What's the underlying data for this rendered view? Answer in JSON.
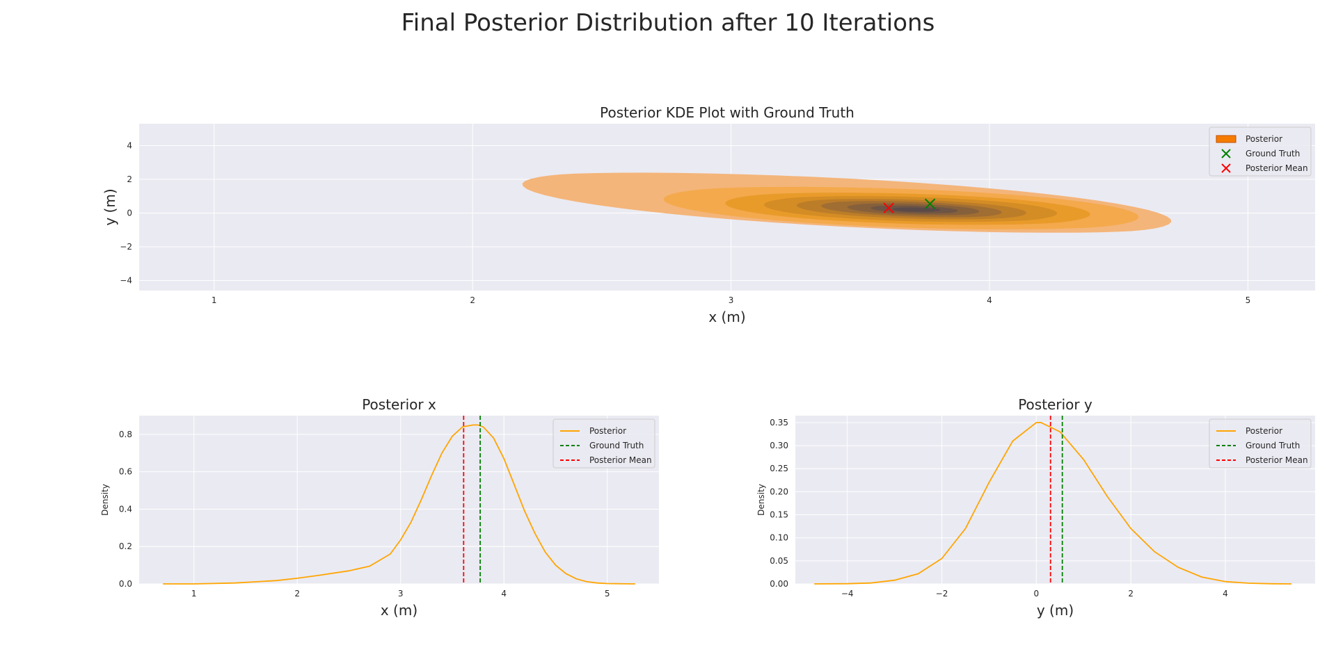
{
  "suptitle": "Final Posterior Distribution after 10 Iterations",
  "colors": {
    "axes_bg": "#eaeaf2",
    "grid": "#ffffff",
    "posterior": "#ffa500",
    "ground_truth": "#008000",
    "posterior_mean": "#ff0000",
    "kde_levels": [
      "#f4b57a",
      "#f4a94c",
      "#e99b2a",
      "#d48c25",
      "#bc7d29",
      "#a06d32",
      "#86603b",
      "#6d5444",
      "#5a4a4a"
    ]
  },
  "chart_data": [
    {
      "type": "kde2d",
      "title": "Posterior KDE Plot with Ground Truth",
      "xlabel": "x (m)",
      "ylabel": "y (m)",
      "xlim": [
        0.71,
        5.26
      ],
      "ylim": [
        -4.6,
        5.3
      ],
      "xticks": [
        1,
        2,
        3,
        4,
        5
      ],
      "yticks": [
        4,
        2,
        0,
        -2,
        -4
      ],
      "ytick_labels": [
        "4",
        "2",
        "0",
        "−2",
        "−4"
      ],
      "grid": true,
      "kde": {
        "center": [
          3.72,
          0.2
        ],
        "major_axis_dir": [
          1,
          -0.95
        ],
        "levels": [
          {
            "t_range": [
              -1.9,
              1.15
            ],
            "halfwidth": 0.3
          },
          {
            "t_range": [
              -1.12,
              0.95
            ],
            "halfwidth": 0.26
          },
          {
            "t_range": [
              -0.82,
              0.72
            ],
            "halfwidth": 0.21
          },
          {
            "t_range": [
              -0.65,
              0.58
            ],
            "halfwidth": 0.17
          },
          {
            "t_range": [
              -0.52,
              0.46
            ],
            "halfwidth": 0.13
          },
          {
            "t_range": [
              -0.42,
              0.36
            ],
            "halfwidth": 0.1
          },
          {
            "t_range": [
              -0.3,
              0.26
            ],
            "halfwidth": 0.075
          },
          {
            "t_range": [
              -0.2,
              0.17
            ],
            "halfwidth": 0.05
          },
          {
            "t_range": [
              -0.1,
              0.09
            ],
            "halfwidth": 0.03
          }
        ]
      },
      "points": [
        {
          "name": "Ground Truth",
          "x": 3.77,
          "y": 0.55,
          "color": "#008000",
          "marker": "x"
        },
        {
          "name": "Posterior Mean",
          "x": 3.61,
          "y": 0.3,
          "color": "#ff0000",
          "marker": "x"
        }
      ],
      "legend": {
        "placement": "upper right",
        "entries": [
          {
            "label": "Posterior",
            "kind": "patch"
          },
          {
            "label": "Ground Truth",
            "kind": "marker"
          },
          {
            "label": "Posterior Mean",
            "kind": "marker"
          }
        ]
      }
    },
    {
      "type": "line",
      "title": "Posterior x",
      "xlabel": "x (m)",
      "ylabel": "Density",
      "xlim": [
        0.47,
        5.5
      ],
      "ylim": [
        0,
        0.9
      ],
      "xticks": [
        1,
        2,
        3,
        4,
        5
      ],
      "yticks": [
        0.0,
        0.2,
        0.4,
        0.6,
        0.8
      ],
      "ytick_labels": [
        "0.0",
        "0.2",
        "0.4",
        "0.6",
        "0.8"
      ],
      "grid": true,
      "series": [
        {
          "name": "Posterior",
          "x": [
            0.7,
            1.0,
            1.4,
            1.8,
            2.0,
            2.2,
            2.5,
            2.7,
            2.9,
            3.0,
            3.1,
            3.2,
            3.3,
            3.4,
            3.5,
            3.6,
            3.7,
            3.75,
            3.8,
            3.9,
            4.0,
            4.1,
            4.2,
            4.3,
            4.4,
            4.5,
            4.6,
            4.7,
            4.8,
            4.9,
            5.0,
            5.1,
            5.27
          ],
          "y": [
            0.0,
            0.0,
            0.005,
            0.018,
            0.03,
            0.045,
            0.07,
            0.095,
            0.16,
            0.235,
            0.33,
            0.45,
            0.58,
            0.7,
            0.79,
            0.84,
            0.85,
            0.85,
            0.84,
            0.78,
            0.67,
            0.53,
            0.39,
            0.27,
            0.17,
            0.1,
            0.055,
            0.027,
            0.012,
            0.005,
            0.002,
            0.001,
            0.0
          ]
        }
      ],
      "vlines": [
        {
          "name": "Ground Truth",
          "x": 3.77,
          "color": "#008000"
        },
        {
          "name": "Posterior Mean",
          "x": 3.61,
          "color": "#ff0000"
        }
      ],
      "legend": {
        "placement": "upper right",
        "entries": [
          {
            "label": "Posterior",
            "kind": "solid",
            "color": "#ffa500"
          },
          {
            "label": "Ground Truth",
            "kind": "dashed",
            "color": "#008000"
          },
          {
            "label": "Posterior Mean",
            "kind": "dashed",
            "color": "#ff0000"
          }
        ]
      }
    },
    {
      "type": "line",
      "title": "Posterior y",
      "xlabel": "y (m)",
      "ylabel": "Density",
      "xlim": [
        -5.1,
        5.9
      ],
      "ylim": [
        0,
        0.365
      ],
      "xticks": [
        -4,
        -2,
        0,
        2,
        4
      ],
      "xtick_labels": [
        "−4",
        "−2",
        "0",
        "2",
        "4"
      ],
      "yticks": [
        0.0,
        0.05,
        0.1,
        0.15,
        0.2,
        0.25,
        0.3,
        0.35
      ],
      "ytick_labels": [
        "0.00",
        "0.05",
        "0.10",
        "0.15",
        "0.20",
        "0.25",
        "0.30",
        "0.35"
      ],
      "grid": true,
      "series": [
        {
          "name": "Posterior",
          "x": [
            -4.7,
            -4.0,
            -3.5,
            -3.0,
            -2.5,
            -2.0,
            -1.5,
            -1.0,
            -0.5,
            0.0,
            0.1,
            0.5,
            1.0,
            1.5,
            2.0,
            2.5,
            3.0,
            3.5,
            4.0,
            4.5,
            5.0,
            5.4
          ],
          "y": [
            0.0,
            0.0005,
            0.002,
            0.008,
            0.022,
            0.055,
            0.12,
            0.22,
            0.31,
            0.35,
            0.35,
            0.33,
            0.27,
            0.19,
            0.12,
            0.07,
            0.036,
            0.015,
            0.005,
            0.0015,
            0.0003,
            0.0
          ]
        }
      ],
      "vlines": [
        {
          "name": "Ground Truth",
          "x": 0.55,
          "color": "#008000"
        },
        {
          "name": "Posterior Mean",
          "x": 0.3,
          "color": "#ff0000"
        }
      ],
      "legend": {
        "placement": "upper right",
        "entries": [
          {
            "label": "Posterior",
            "kind": "solid",
            "color": "#ffa500"
          },
          {
            "label": "Ground Truth",
            "kind": "dashed",
            "color": "#008000"
          },
          {
            "label": "Posterior Mean",
            "kind": "dashed",
            "color": "#ff0000"
          }
        ]
      }
    }
  ]
}
